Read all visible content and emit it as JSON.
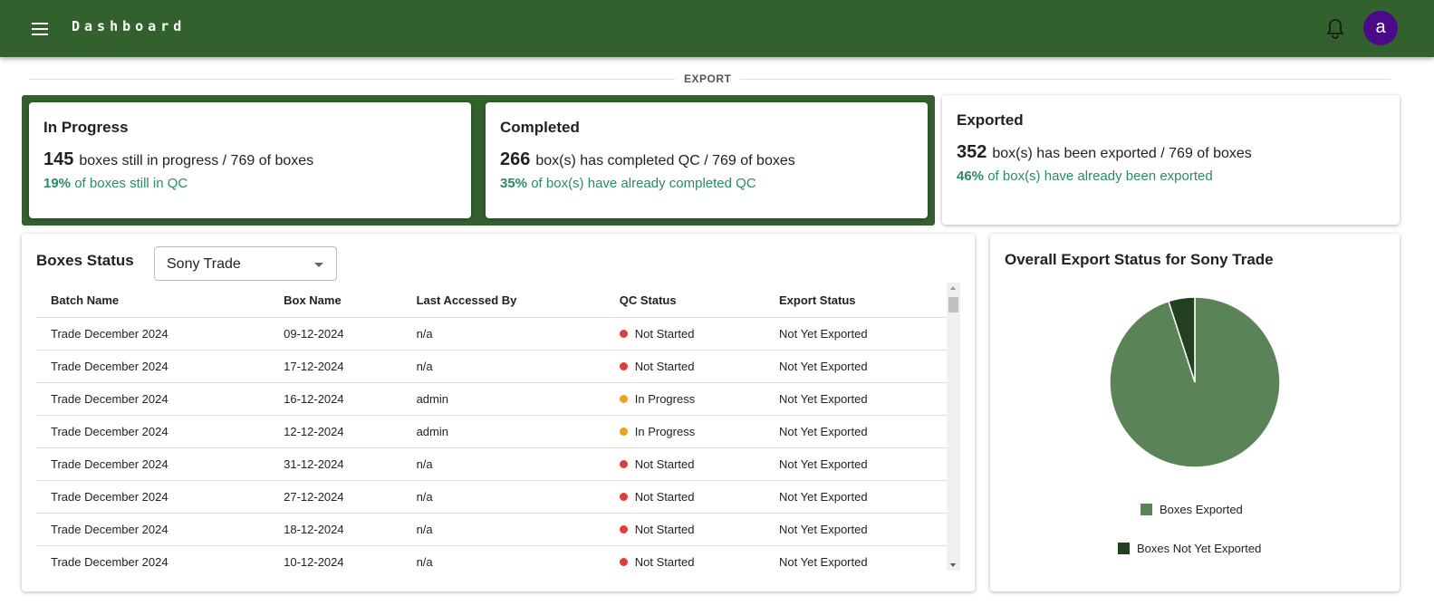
{
  "header": {
    "title": "Dashboard",
    "avatar_letter": "a"
  },
  "section_label": "EXPORT",
  "cards": [
    {
      "title": "In Progress",
      "count": "145",
      "text": "boxes still in progress / 769 of boxes",
      "pct": "19%",
      "pct_text": "of boxes still in QC"
    },
    {
      "title": "Completed",
      "count": "266",
      "text": "box(s) has completed QC / 769 of boxes",
      "pct": "35%",
      "pct_text": "of box(s) have already completed QC"
    },
    {
      "title": "Exported",
      "count": "352",
      "text": "box(s) has been exported / 769 of boxes",
      "pct": "46%",
      "pct_text": "of box(s) have already been exported"
    }
  ],
  "boxes": {
    "title": "Boxes Status",
    "selected": "Sony Trade",
    "columns": [
      "Batch Name",
      "Box Name",
      "Last Accessed By",
      "QC Status",
      "Export Status"
    ],
    "rows": [
      [
        "Trade December 2024",
        "09-12-2024",
        "n/a",
        "Not Started",
        "Not Yet Exported"
      ],
      [
        "Trade December 2024",
        "17-12-2024",
        "n/a",
        "Not Started",
        "Not Yet Exported"
      ],
      [
        "Trade December 2024",
        "16-12-2024",
        "admin",
        "In Progress",
        "Not Yet Exported"
      ],
      [
        "Trade December 2024",
        "12-12-2024",
        "admin",
        "In Progress",
        "Not Yet Exported"
      ],
      [
        "Trade December 2024",
        "31-12-2024",
        "n/a",
        "Not Started",
        "Not Yet Exported"
      ],
      [
        "Trade December 2024",
        "27-12-2024",
        "n/a",
        "Not Started",
        "Not Yet Exported"
      ],
      [
        "Trade December 2024",
        "18-12-2024",
        "n/a",
        "Not Started",
        "Not Yet Exported"
      ],
      [
        "Trade December 2024",
        "10-12-2024",
        "n/a",
        "Not Started",
        "Not Yet Exported"
      ]
    ],
    "status_colors": {
      "Not Started": "#e03c3c",
      "In Progress": "#f0a020"
    }
  },
  "chart_data": {
    "type": "pie",
    "title": "Overall Export Status for Sony Trade",
    "legend": "bottom",
    "categories": [
      "Boxes Exported",
      "Boxes Not Yet Exported"
    ],
    "values": [
      95,
      5
    ],
    "colors": [
      "#5b8358",
      "#22401f"
    ]
  }
}
